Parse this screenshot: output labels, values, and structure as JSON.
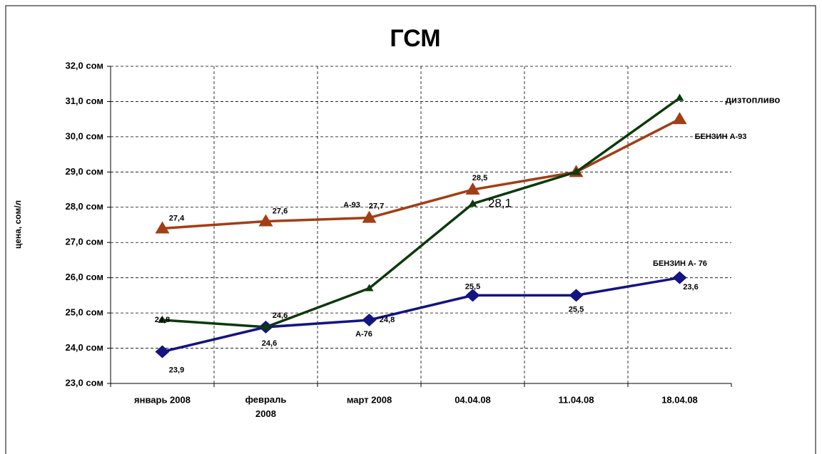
{
  "chart_data": {
    "type": "line",
    "title": "ГСМ",
    "y_label": "цена, сом/л",
    "categories": [
      "январь 2008",
      "февраль 2008",
      "март 2008",
      "04.04.08",
      "11.04.08",
      "18.04.08"
    ],
    "ylim": [
      23,
      32
    ],
    "yticks": [
      {
        "value": 23,
        "label": "23,0 сом"
      },
      {
        "value": 24,
        "label": "24,0 сом"
      },
      {
        "value": 25,
        "label": "25,0 сом"
      },
      {
        "value": 26,
        "label": "26,0 сом"
      },
      {
        "value": 27,
        "label": "27,0 сом"
      },
      {
        "value": 28,
        "label": "28,0 сом"
      },
      {
        "value": 29,
        "label": "29,0 сом"
      },
      {
        "value": 30,
        "label": "30,0 сом"
      },
      {
        "value": 31,
        "label": "31,0 сом"
      },
      {
        "value": 32,
        "label": "32,0 сом"
      }
    ],
    "grid": true,
    "series": [
      {
        "name": "БЕНЗИН А- 76",
        "color": "#141482",
        "marker": "diamond",
        "values": [
          23.9,
          24.6,
          24.8,
          25.5,
          25.5,
          26.0
        ],
        "value_labels": [
          "23,9",
          "24,6",
          "24,8",
          "25,5",
          "25,5",
          null
        ]
      },
      {
        "name": "БЕНЗИН А-93",
        "color": "#a23e16",
        "marker": "triangle",
        "values": [
          27.4,
          27.6,
          27.7,
          28.5,
          29.0,
          30.5
        ],
        "value_labels": [
          "27,4",
          "27,6",
          "27,7",
          "28,5",
          null,
          null
        ]
      },
      {
        "name": "дизтопливо",
        "color": "#0b3a0b",
        "marker": "small-triangle",
        "values": [
          24.8,
          24.6,
          25.7,
          28.1,
          29.0,
          31.1
        ],
        "value_labels": [
          "24,8",
          "24,6",
          null,
          "28,1",
          null,
          null
        ]
      }
    ],
    "annotations": [
      "23,6",
      "А-76",
      "А-93"
    ]
  }
}
